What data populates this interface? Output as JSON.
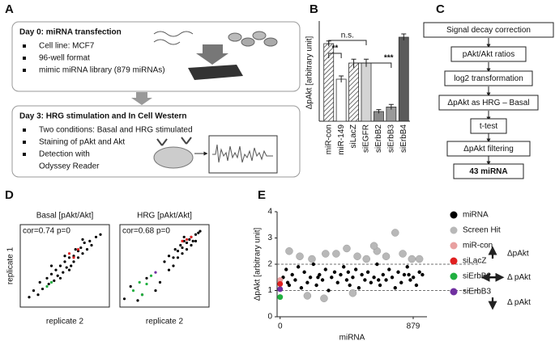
{
  "panel_labels": [
    "A",
    "B",
    "C",
    "D",
    "E"
  ],
  "panel_a": {
    "boxes": [
      {
        "title": "Day 0: miRNA transfection",
        "items": [
          "Cell line: MCF7",
          "96-well format",
          "mimic miRNA library (879 miRNAs)"
        ]
      },
      {
        "title": "Day 3: HRG stimulation and In Cell Western",
        "items": [
          "Two conditions: Basal and HRG stimulated",
          "Staining of pAkt and Akt",
          "Detection with",
          "Odyssey Reader"
        ]
      }
    ]
  },
  "panel_c": {
    "nodes": [
      {
        "label": "Signal decay correction"
      },
      {
        "label": "pAkt/Akt ratios"
      },
      {
        "label": "log2 transformation"
      },
      {
        "label": "ΔpAkt as HRG – Basal"
      },
      {
        "label": "t-test"
      },
      {
        "label": "ΔpAkt filtering"
      },
      {
        "label": "43 miRNA"
      }
    ]
  },
  "chart_data": [
    {
      "type": "bar",
      "ylabel": "ΔpAkt [arbitrary unit]",
      "categories": [
        "miR-con",
        "miR-149",
        "siLacZ",
        "siEGFR",
        "siErbB2",
        "siErbB3",
        "siErbB4"
      ],
      "values": [
        1.2,
        0.65,
        0.9,
        0.9,
        0.15,
        0.22,
        1.3
      ],
      "errors": [
        0.04,
        0.05,
        0.06,
        0.06,
        0.03,
        0.04,
        0.05
      ],
      "colors": [
        "#d0d0d0",
        "#ffffff",
        "#ffffff",
        "#d4d4d4",
        "#8a8a8a",
        "#9a9a9a",
        "#5a5a5a"
      ],
      "hatch": [
        true,
        false,
        true,
        false,
        false,
        false,
        false
      ],
      "ylim": [
        0,
        1.5
      ],
      "annotations": [
        "**",
        "n.s.",
        "***"
      ]
    },
    {
      "type": "scatter",
      "title": "Basal [pAkt/Akt]",
      "annotation": "cor=0.74 p=0",
      "xlabel": "replicate 2",
      "ylabel": "replicate 1",
      "xlim": [
        0,
        1
      ],
      "ylim": [
        0,
        1
      ],
      "series": [
        {
          "color": "#000000",
          "x": [
            0.1,
            0.15,
            0.2,
            0.22,
            0.25,
            0.3,
            0.32,
            0.35,
            0.38,
            0.4,
            0.42,
            0.45,
            0.48,
            0.5,
            0.52,
            0.55,
            0.57,
            0.6,
            0.62,
            0.65,
            0.68,
            0.7,
            0.72,
            0.75,
            0.78,
            0.8,
            0.85,
            0.9,
            0.35,
            0.55,
            0.6,
            0.45,
            0.7,
            0.5,
            0.65
          ],
          "values": [
            0.12,
            0.2,
            0.15,
            0.3,
            0.22,
            0.35,
            0.28,
            0.4,
            0.32,
            0.45,
            0.38,
            0.5,
            0.42,
            0.55,
            0.48,
            0.6,
            0.5,
            0.62,
            0.7,
            0.6,
            0.72,
            0.65,
            0.78,
            0.7,
            0.8,
            0.75,
            0.85,
            0.88,
            0.5,
            0.45,
            0.55,
            0.35,
            0.82,
            0.62,
            0.68
          ]
        },
        {
          "color": "#e02020",
          "x": [
            0.55,
            0.6,
            0.65
          ],
          "values": [
            0.65,
            0.6,
            0.7
          ]
        },
        {
          "color": "#20b040",
          "x": [
            0.3,
            0.35
          ],
          "values": [
            0.25,
            0.3
          ]
        }
      ]
    },
    {
      "type": "scatter",
      "title": "HRG [pAkt/Akt]",
      "annotation": "cor=0.68 p=0",
      "xlabel": "replicate 2",
      "xlim": [
        0,
        1
      ],
      "ylim": [
        0,
        1
      ],
      "series": [
        {
          "color": "#000000",
          "x": [
            0.05,
            0.12,
            0.2,
            0.3,
            0.45,
            0.5,
            0.55,
            0.6,
            0.62,
            0.65,
            0.68,
            0.7,
            0.72,
            0.75,
            0.78,
            0.8,
            0.82,
            0.85,
            0.88,
            0.9,
            0.65,
            0.7,
            0.75,
            0.8,
            0.6,
            0.72,
            0.85,
            0.55,
            0.4,
            0.25
          ],
          "values": [
            0.1,
            0.25,
            0.08,
            0.35,
            0.3,
            0.55,
            0.62,
            0.6,
            0.7,
            0.68,
            0.75,
            0.72,
            0.8,
            0.78,
            0.82,
            0.85,
            0.8,
            0.88,
            0.9,
            0.92,
            0.6,
            0.65,
            0.7,
            0.75,
            0.5,
            0.85,
            0.8,
            0.45,
            0.2,
            0.15
          ]
        },
        {
          "color": "#e02020",
          "x": [
            0.75,
            0.8,
            0.7
          ],
          "values": [
            0.82,
            0.85,
            0.8
          ]
        },
        {
          "color": "#20b040",
          "x": [
            0.15,
            0.22,
            0.3,
            0.35,
            0.25
          ],
          "values": [
            0.2,
            0.3,
            0.28,
            0.38,
            0.15
          ]
        },
        {
          "color": "#7030a0",
          "x": [
            0.4
          ],
          "values": [
            0.42
          ]
        }
      ]
    },
    {
      "type": "scatter",
      "ylabel": "ΔpAkt [arbitrary unit]",
      "xlabel": "miRNA",
      "xlim": [
        -20,
        970
      ],
      "ylim": [
        0,
        4
      ],
      "yticks": [
        0,
        1,
        2,
        3,
        4
      ],
      "xticks": [
        0,
        879
      ],
      "thresholds": [
        1,
        2
      ],
      "annotations": [
        "ΔpAkt",
        "Δ pAkt",
        "Δ pAkt"
      ],
      "series": [
        {
          "name": "miRNA",
          "color": "#000000",
          "size": 2.2,
          "x": [
            20,
            40,
            60,
            80,
            100,
            120,
            140,
            160,
            180,
            200,
            220,
            240,
            260,
            280,
            300,
            320,
            340,
            360,
            380,
            400,
            420,
            440,
            460,
            480,
            500,
            520,
            540,
            560,
            580,
            600,
            620,
            640,
            660,
            680,
            700,
            720,
            740,
            760,
            780,
            800,
            820,
            840,
            860,
            880,
            900,
            920,
            940,
            50,
            250,
            450,
            650,
            850
          ],
          "values": [
            1.5,
            1.8,
            1.2,
            1.6,
            1.4,
            1.9,
            1.1,
            1.7,
            1.3,
            1.5,
            2.0,
            1.2,
            1.6,
            1.4,
            1.8,
            1.0,
            1.5,
            1.7,
            1.3,
            1.6,
            1.9,
            1.4,
            1.2,
            1.5,
            1.8,
            1.1,
            1.6,
            1.4,
            1.7,
            1.3,
            1.5,
            2.0,
            1.2,
            1.6,
            1.4,
            1.8,
            1.5,
            1.1,
            1.7,
            1.3,
            1.6,
            1.9,
            1.4,
            1.5,
            1.2,
            1.7,
            1.6,
            1.3,
            1.5,
            1.7,
            1.4,
            1.6
          ]
        },
        {
          "name": "Screen Hit",
          "color": "#b8b8b8",
          "size": 4.5,
          "x": [
            60,
            130,
            210,
            290,
            370,
            440,
            510,
            570,
            640,
            700,
            760,
            810,
            870,
            920,
            180,
            480,
            620,
            300
          ],
          "values": [
            2.5,
            2.3,
            2.2,
            0.7,
            2.4,
            2.6,
            2.3,
            2.2,
            2.5,
            2.3,
            3.2,
            2.4,
            2.2,
            2.2,
            0.8,
            0.9,
            2.7,
            2.4
          ]
        },
        {
          "name": "miR-con",
          "color": "#e8a0a0",
          "size": 3.5,
          "x": [
            0
          ],
          "values": [
            1.4
          ]
        },
        {
          "name": "siLacZ",
          "color": "#e02020",
          "size": 3.5,
          "x": [
            0
          ],
          "values": [
            1.25
          ]
        },
        {
          "name": "siErbB2",
          "color": "#20b040",
          "size": 3.5,
          "x": [
            0
          ],
          "values": [
            0.75
          ]
        },
        {
          "name": "siErbB3",
          "color": "#7030a0",
          "size": 3.5,
          "x": [
            0
          ],
          "values": [
            1.05
          ]
        }
      ]
    }
  ]
}
